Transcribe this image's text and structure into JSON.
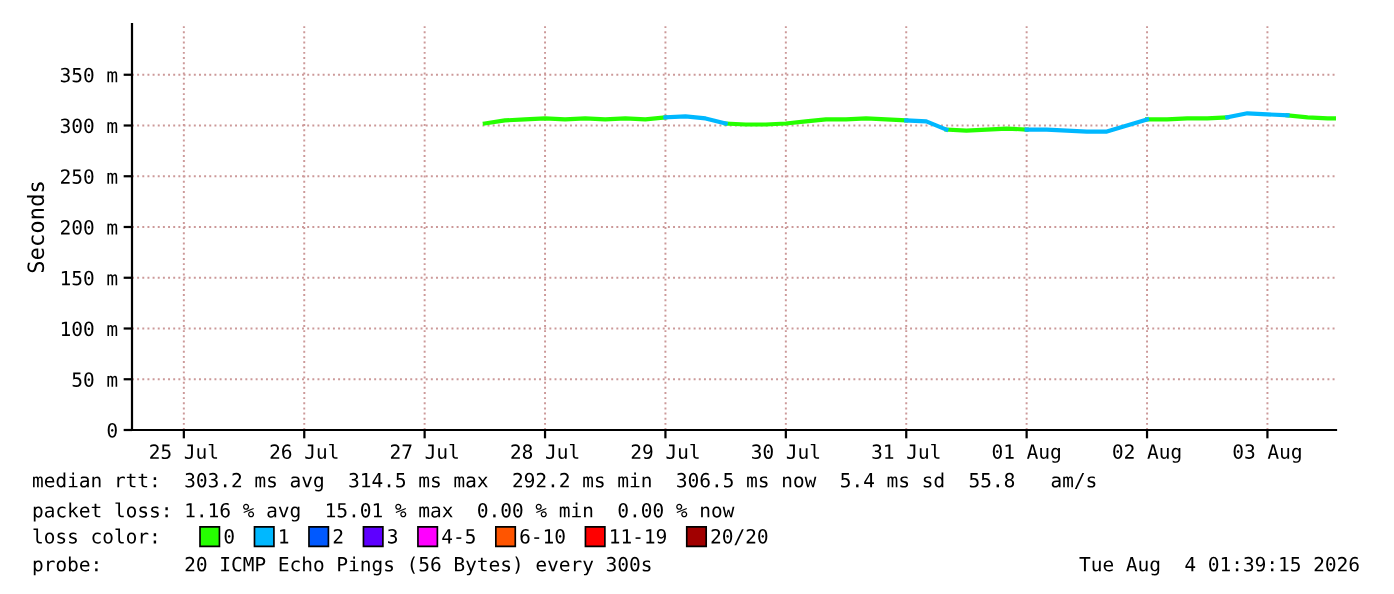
{
  "chart_data": {
    "type": "line",
    "ylabel": "Seconds",
    "xlim": [
      "2026-07-25T01:40",
      "2026-08-04T01:40"
    ],
    "xticks": [
      {
        "value": "2026-07-25T12:00",
        "label": "25 Jul"
      },
      {
        "value": "2026-07-26T12:00",
        "label": "26 Jul"
      },
      {
        "value": "2026-07-27T12:00",
        "label": "27 Jul"
      },
      {
        "value": "2026-07-28T12:00",
        "label": "28 Jul"
      },
      {
        "value": "2026-07-29T12:00",
        "label": "29 Jul"
      },
      {
        "value": "2026-07-30T12:00",
        "label": "30 Jul"
      },
      {
        "value": "2026-07-31T12:00",
        "label": "31 Jul"
      },
      {
        "value": "2026-08-01T12:00",
        "label": "01 Aug"
      },
      {
        "value": "2026-08-02T12:00",
        "label": "02 Aug"
      },
      {
        "value": "2026-08-03T12:00",
        "label": "03 Aug"
      }
    ],
    "ylim": [
      0,
      400
    ],
    "yticks": [
      0,
      {
        "value": 50,
        "label": "50 m"
      },
      {
        "value": 100,
        "label": "100 m"
      },
      {
        "value": 150,
        "label": "150 m"
      },
      {
        "value": 200,
        "label": "200 m"
      },
      {
        "value": 250,
        "label": "250 m"
      },
      {
        "value": 300,
        "label": "300 m"
      },
      {
        "value": 350,
        "label": "350 m"
      }
    ],
    "grid": true,
    "legend": "bottom",
    "legend_title": "loss color:",
    "series": [
      {
        "name": "0",
        "color": "#26ff00",
        "x": [
          "2026-07-28T00:00",
          "2026-07-28T04:00",
          "2026-07-28T08:00",
          "2026-07-28T12:00",
          "2026-07-28T16:00",
          "2026-07-28T20:00",
          "2026-07-29T00:00",
          "2026-07-29T04:00",
          "2026-07-29T08:00",
          "2026-07-29T12:00",
          "2026-07-29T16:00",
          "2026-07-29T20:00",
          "2026-07-30T00:00",
          "2026-07-30T04:00",
          "2026-07-30T08:00",
          "2026-07-30T12:00",
          "2026-07-30T16:00",
          "2026-07-30T20:00",
          "2026-07-31T00:00",
          "2026-07-31T04:00",
          "2026-07-31T08:00",
          "2026-07-31T12:00",
          "2026-07-31T16:00",
          "2026-07-31T20:00",
          "2026-08-01T00:00",
          "2026-08-01T04:00",
          "2026-08-01T08:00",
          "2026-08-01T12:00",
          "2026-08-01T16:00",
          "2026-08-01T20:00",
          "2026-08-02T00:00",
          "2026-08-02T04:00",
          "2026-08-02T08:00",
          "2026-08-02T12:00",
          "2026-08-02T16:00",
          "2026-08-02T20:00",
          "2026-08-03T00:00",
          "2026-08-03T04:00",
          "2026-08-03T08:00",
          "2026-08-03T12:00",
          "2026-08-03T16:00",
          "2026-08-03T20:00",
          "2026-08-04T00:00",
          "2026-08-04T01:30"
        ],
        "values": [
          302,
          305,
          306,
          307,
          306,
          307,
          306,
          307,
          306,
          308,
          null,
          null,
          302,
          301,
          301,
          302,
          304,
          306,
          306,
          307,
          306,
          305,
          null,
          296,
          295,
          296,
          297,
          296,
          null,
          null,
          null,
          null,
          null,
          306,
          306,
          307,
          307,
          308,
          null,
          null,
          310,
          308,
          307,
          307
        ]
      },
      {
        "name": "1",
        "color": "#00b8ff",
        "x": [
          "2026-07-29T12:00",
          "2026-07-29T16:00",
          "2026-07-29T20:00",
          "2026-07-30T00:00",
          "2026-07-30T12:00",
          "2026-07-31T12:00",
          "2026-07-31T16:00",
          "2026-07-31T20:00",
          "2026-08-01T00:00",
          "2026-08-01T12:00",
          "2026-08-01T16:00",
          "2026-08-01T20:00",
          "2026-08-02T00:00",
          "2026-08-02T04:00",
          "2026-08-02T08:00",
          "2026-08-02T12:00",
          "2026-08-02T20:00",
          "2026-08-03T04:00",
          "2026-08-03T08:00",
          "2026-08-03T12:00",
          "2026-08-03T16:00"
        ],
        "values": [
          308,
          309,
          307,
          302,
          null,
          305,
          304,
          296,
          null,
          296,
          296,
          295,
          294,
          294,
          300,
          306,
          null,
          308,
          312,
          311,
          310
        ]
      },
      {
        "name": "2",
        "color": "#0059ff"
      },
      {
        "name": "3",
        "color": "#5e00ff"
      },
      {
        "name": "4-5",
        "color": "#ff00ff"
      },
      {
        "name": "6-10",
        "color": "#ff5500"
      },
      {
        "name": "11-19",
        "color": "#ff0000"
      },
      {
        "name": "20/20",
        "color": "#a10000"
      }
    ],
    "annotations": [
      "median rtt:  303.2 ms avg  314.5 ms max  292.2 ms min  306.5 ms now  5.4 ms sd  55.8   am/s",
      "packet loss: 1.16 % avg  15.01 % max  0.00 % min  0.00 % now",
      "probe:       20 ICMP Echo Pings (56 Bytes) every 300s",
      "Tue Aug  4 01:39:15 2026"
    ]
  }
}
